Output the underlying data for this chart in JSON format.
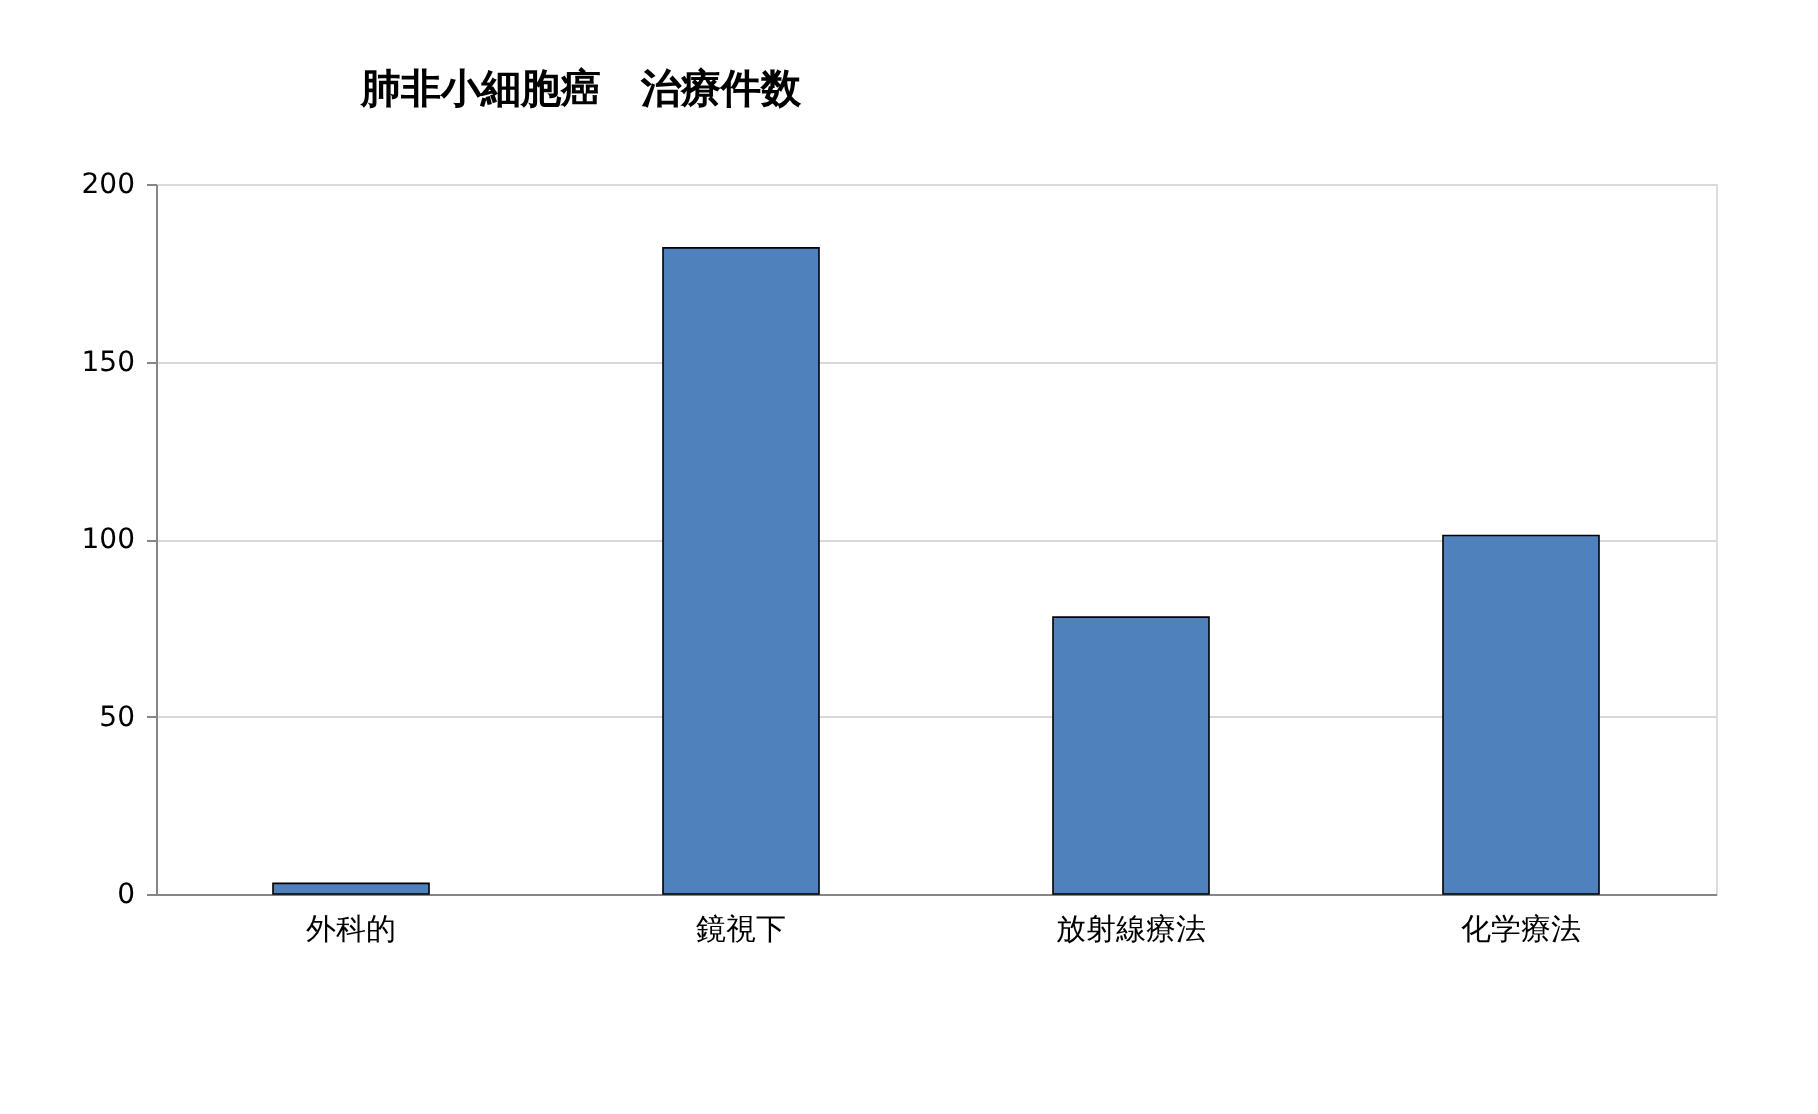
{
  "chart_data": {
    "type": "bar",
    "title": "肺非小細胞癌　治療件数",
    "categories": [
      "外科的",
      "鏡視下",
      "放射線療法",
      "化学療法"
    ],
    "values": [
      3,
      182,
      78,
      101
    ],
    "color": "#4f81bd",
    "ylim": [
      0,
      200
    ],
    "yticks": [
      0,
      50,
      100,
      150,
      200
    ],
    "grid": "y"
  }
}
